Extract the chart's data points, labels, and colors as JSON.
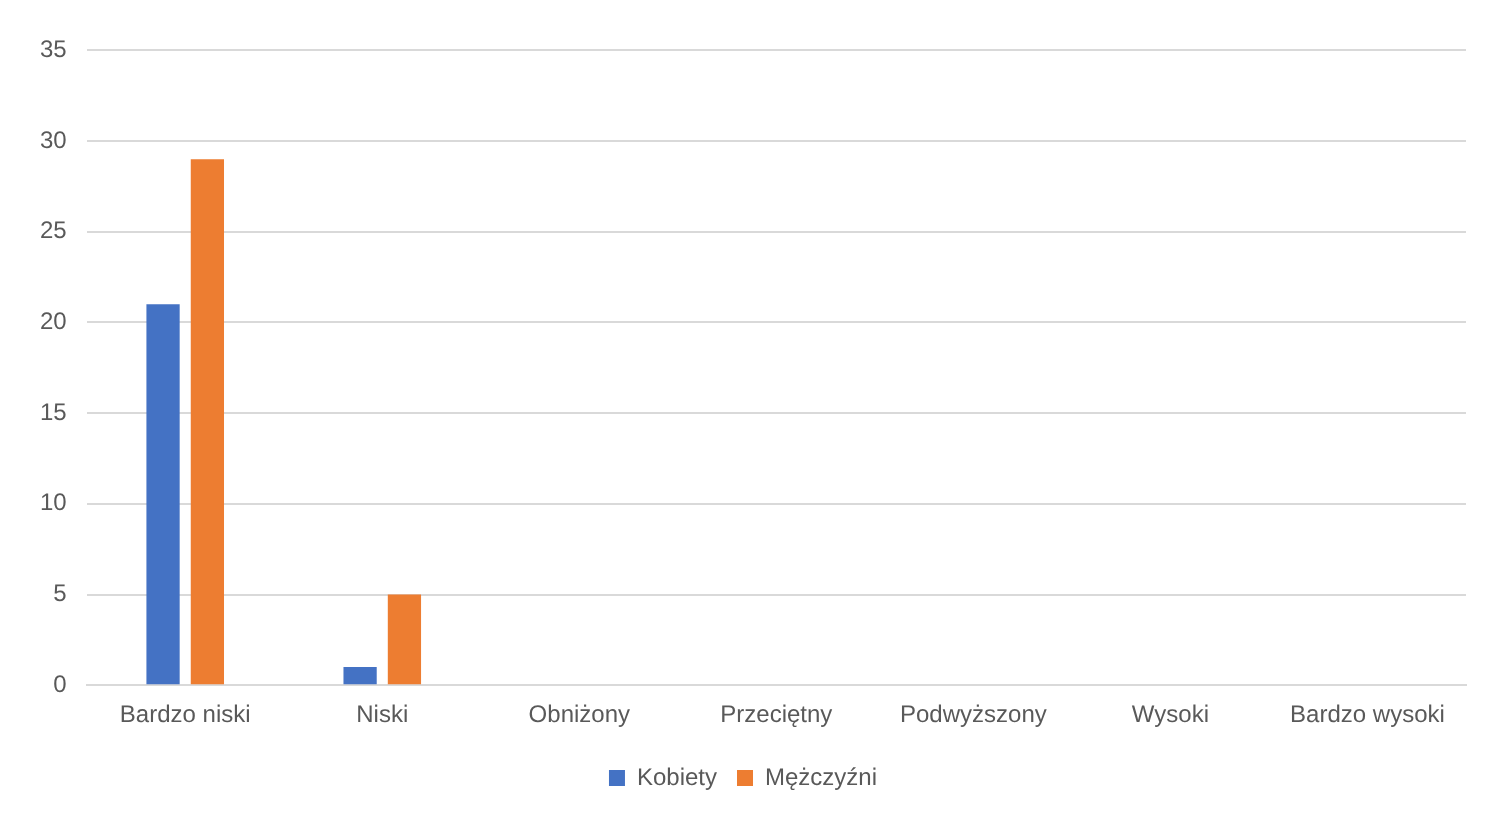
{
  "chart_data": {
    "type": "bar",
    "categories": [
      "Bardzo niski",
      "Niski",
      "Obniżony",
      "Przeciętny",
      "Podwyższony",
      "Wysoki",
      "Bardzo wysoki"
    ],
    "series": [
      {
        "name": "Kobiety",
        "color": "#4472c4",
        "values": [
          21,
          1,
          0,
          0,
          0,
          0,
          0
        ]
      },
      {
        "name": "Mężczyźni",
        "color": "#ed7d31",
        "values": [
          29,
          5,
          0,
          0,
          0,
          0,
          0
        ]
      }
    ],
    "ylim": [
      0,
      35
    ],
    "yticks": [
      0,
      5,
      10,
      15,
      20,
      25,
      30,
      35
    ],
    "grid": "y",
    "legend": "bottom"
  }
}
